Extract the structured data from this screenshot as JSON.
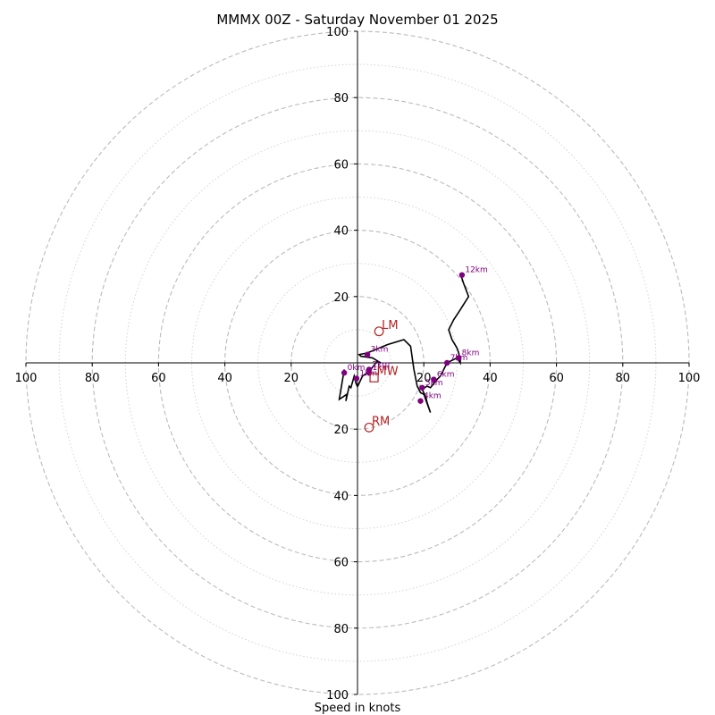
{
  "chart_data": {
    "type": "hodograph",
    "title": "MMMX 00Z - Saturday November 01 2025",
    "xlabel": "Speed in knots",
    "axis_range": [
      -100,
      100
    ],
    "ring_values": [
      10,
      20,
      30,
      40,
      50,
      60,
      70,
      80,
      90,
      100
    ],
    "tick_values": [
      20,
      40,
      60,
      80,
      100
    ],
    "ticks": {
      "left": [
        "100",
        "80",
        "60",
        "40",
        "20"
      ],
      "right": [
        "20",
        "40",
        "60",
        "80",
        "100"
      ],
      "top": [
        "100",
        "80",
        "60",
        "40",
        "20"
      ],
      "bottom": [
        "20",
        "40",
        "60",
        "80",
        "100"
      ]
    },
    "trace": [
      [
        -4,
        -2
      ],
      [
        -5.5,
        -11
      ],
      [
        -3.2,
        -9.5
      ],
      [
        -3.5,
        -11.5
      ],
      [
        -2.5,
        -7
      ],
      [
        -2,
        -7.5
      ],
      [
        -1,
        -4
      ],
      [
        -0.5,
        -6
      ],
      [
        0,
        -7.2
      ],
      [
        1.5,
        -4
      ],
      [
        3,
        -3
      ],
      [
        4,
        -2
      ],
      [
        6,
        0.5
      ],
      [
        7,
        0
      ],
      [
        4.5,
        1.5
      ],
      [
        1,
        2
      ],
      [
        0.5,
        2.5
      ],
      [
        3,
        3
      ],
      [
        9,
        5.5
      ],
      [
        14,
        7
      ],
      [
        16,
        5
      ],
      [
        17,
        -2
      ],
      [
        18,
        -7
      ],
      [
        19,
        -9
      ],
      [
        20,
        -9.5
      ],
      [
        22,
        -15
      ],
      [
        21,
        -12
      ],
      [
        20.5,
        -10
      ],
      [
        19.5,
        -8
      ],
      [
        21,
        -7
      ],
      [
        22,
        -7.5
      ],
      [
        24,
        -5
      ],
      [
        25,
        -4
      ],
      [
        26,
        -2
      ],
      [
        27,
        0
      ],
      [
        28,
        0.5
      ],
      [
        29,
        1
      ],
      [
        30,
        1.5
      ],
      [
        31,
        0
      ],
      [
        31,
        1
      ],
      [
        30.5,
        3
      ],
      [
        30,
        4.5
      ],
      [
        28.5,
        7
      ],
      [
        27.5,
        10
      ],
      [
        29,
        13
      ],
      [
        31,
        16
      ],
      [
        33.5,
        20
      ],
      [
        32,
        24
      ],
      [
        31,
        27
      ]
    ],
    "height_markers": [
      {
        "label": "1km",
        "u": 3.5,
        "v": -3
      },
      {
        "label": "2km",
        "u": 3.5,
        "v": -2
      },
      {
        "label": "3km",
        "u": 3,
        "v": 2.5
      },
      {
        "label": "4km",
        "u": 19,
        "v": -11.5
      },
      {
        "label": "5km",
        "u": 19.5,
        "v": -7.5
      },
      {
        "label": "6km",
        "u": 23,
        "v": -5
      },
      {
        "label": "7km",
        "u": 27,
        "v": 0
      },
      {
        "label": "8km",
        "u": 30.5,
        "v": 1.5
      },
      {
        "label": "12km",
        "u": 31.5,
        "v": 26.5
      },
      {
        "label": "1km",
        "u": -0.3,
        "v": -4.7
      },
      {
        "label": "0km",
        "u": -4,
        "v": -3
      }
    ],
    "storm_motion": [
      {
        "label": "LM",
        "u": 6.5,
        "v": 9.5,
        "shape": "circle"
      },
      {
        "label": "MW",
        "u": 5,
        "v": -4.5,
        "shape": "square"
      },
      {
        "label": "RM",
        "u": 3.5,
        "v": -19.5,
        "shape": "circle"
      }
    ],
    "colors": {
      "trace": "#000000",
      "markers": "#800080",
      "storm": "#b22222",
      "grid": "#bbbbbb"
    }
  }
}
